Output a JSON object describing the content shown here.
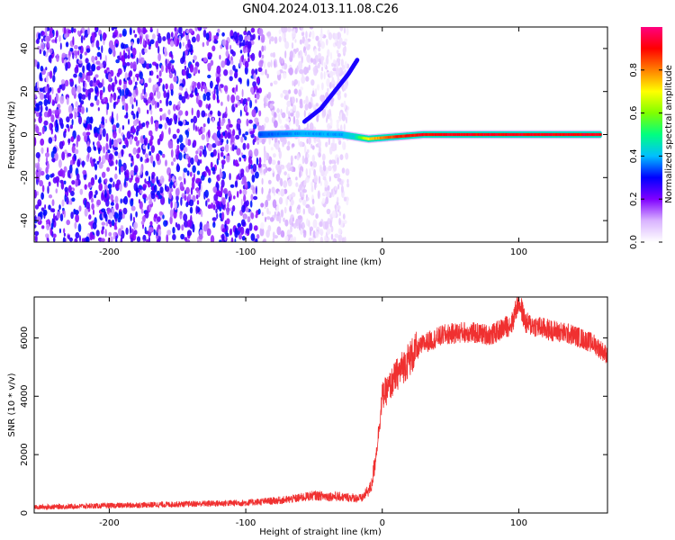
{
  "figure": {
    "title": "GN04.2024.013.11.08.C26"
  },
  "chart_data": [
    {
      "type": "heatmap",
      "title": "GN04.2024.013.11.08.C26",
      "xlabel": "Height of straight line (km)",
      "ylabel": "Frequency (Hz)",
      "xlim": [
        -255,
        165
      ],
      "ylim": [
        -50,
        50
      ],
      "xticks": [
        -200,
        -100,
        0,
        100
      ],
      "yticks": [
        -40,
        -20,
        0,
        20,
        40
      ],
      "colorbar": {
        "label": "Normalized spectral amplitude",
        "range": [
          0,
          1
        ],
        "ticks": [
          0.0,
          0.2,
          0.4,
          0.6,
          0.8
        ],
        "colormap": [
          "#ffffff",
          "#d9b3ff",
          "#8000ff",
          "#0000ff",
          "#00bfff",
          "#00ff80",
          "#80ff00",
          "#ffff00",
          "#ff8000",
          "#ff0000",
          "#ff0080"
        ]
      },
      "features": {
        "noise_region_x": [
          -255,
          -25
        ],
        "carrier_line": [
          {
            "x": -90,
            "y": 0,
            "amplitude": 0.35
          },
          {
            "x": -60,
            "y": 0.5,
            "amplitude": 0.4
          },
          {
            "x": -30,
            "y": 0,
            "amplitude": 0.4
          },
          {
            "x": -20,
            "y": -1,
            "amplitude": 0.45
          },
          {
            "x": -10,
            "y": -2,
            "amplitude": 0.75
          },
          {
            "x": 10,
            "y": -1,
            "amplitude": 0.9
          },
          {
            "x": 30,
            "y": 0,
            "amplitude": 0.95
          },
          {
            "x": 160,
            "y": 0,
            "amplitude": 0.95
          }
        ],
        "curved_branch": [
          {
            "x": -57,
            "y": 6
          },
          {
            "x": -45,
            "y": 12
          },
          {
            "x": -35,
            "y": 20
          },
          {
            "x": -25,
            "y": 28
          },
          {
            "x": -18,
            "y": 35
          }
        ]
      }
    },
    {
      "type": "line",
      "xlabel": "Height of straight line (km)",
      "ylabel": "SNR (10 * v/v)",
      "xlim": [
        -255,
        165
      ],
      "ylim": [
        0,
        7400
      ],
      "xticks": [
        -200,
        -100,
        0,
        100
      ],
      "yticks": [
        0,
        2000,
        4000,
        6000
      ],
      "series": [
        {
          "color": "#f03030",
          "x": [
            -255,
            -200,
            -150,
            -100,
            -70,
            -50,
            -30,
            -15,
            -8,
            -4,
            0,
            5,
            10,
            20,
            30,
            45,
            60,
            80,
            95,
            100,
            105,
            120,
            140,
            155,
            165
          ],
          "y": [
            200,
            250,
            300,
            350,
            450,
            600,
            550,
            500,
            900,
            2200,
            4000,
            4300,
            4700,
            5300,
            5800,
            6100,
            6200,
            6100,
            6500,
            7300,
            6500,
            6300,
            6100,
            5800,
            5400
          ]
        }
      ]
    }
  ]
}
